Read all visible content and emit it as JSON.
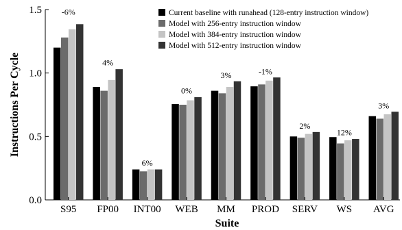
{
  "chart_data": {
    "type": "bar",
    "title": "",
    "xlabel": "Suite",
    "ylabel": "Instructions Per Cycle",
    "ylim": [
      0,
      1.5
    ],
    "yticks": [
      "0.0",
      "0.5",
      "1.0",
      "1.5"
    ],
    "grid": false,
    "legend_position": "top-right",
    "categories": [
      "S95",
      "FP00",
      "INT00",
      "WEB",
      "MM",
      "PROD",
      "SERV",
      "WS",
      "AVG"
    ],
    "series": [
      {
        "name": "Current baseline with runahead (128-entry instruction window)",
        "color": "#000000",
        "values": [
          1.2,
          0.89,
          0.24,
          0.755,
          0.86,
          0.895,
          0.5,
          0.495,
          0.66
        ]
      },
      {
        "name": "Model with 256-entry instruction window",
        "color": "#6b6b6b",
        "values": [
          1.28,
          0.86,
          0.225,
          0.75,
          0.84,
          0.91,
          0.49,
          0.445,
          0.64
        ]
      },
      {
        "name": "Model with 384-entry instruction window",
        "color": "#c4c4c4",
        "values": [
          1.345,
          0.945,
          0.24,
          0.785,
          0.89,
          0.94,
          0.52,
          0.47,
          0.675
        ]
      },
      {
        "name": "Model with 512-entry instruction window",
        "color": "#333333",
        "values": [
          1.385,
          1.03,
          0.24,
          0.81,
          0.935,
          0.965,
          0.535,
          0.48,
          0.695
        ]
      }
    ],
    "annotations": [
      {
        "category": "S95",
        "text": "-6%",
        "y": 1.46
      },
      {
        "category": "FP00",
        "text": "4%",
        "y": 1.06
      },
      {
        "category": "INT00",
        "text": "6%",
        "y": 0.27
      },
      {
        "category": "WEB",
        "text": "0%",
        "y": 0.84
      },
      {
        "category": "MM",
        "text": "3%",
        "y": 0.96
      },
      {
        "category": "PROD",
        "text": "-1%",
        "y": 0.99
      },
      {
        "category": "SERV",
        "text": "2%",
        "y": 0.56
      },
      {
        "category": "WS",
        "text": "12%",
        "y": 0.51
      },
      {
        "category": "AVG",
        "text": "3%",
        "y": 0.72
      }
    ]
  }
}
